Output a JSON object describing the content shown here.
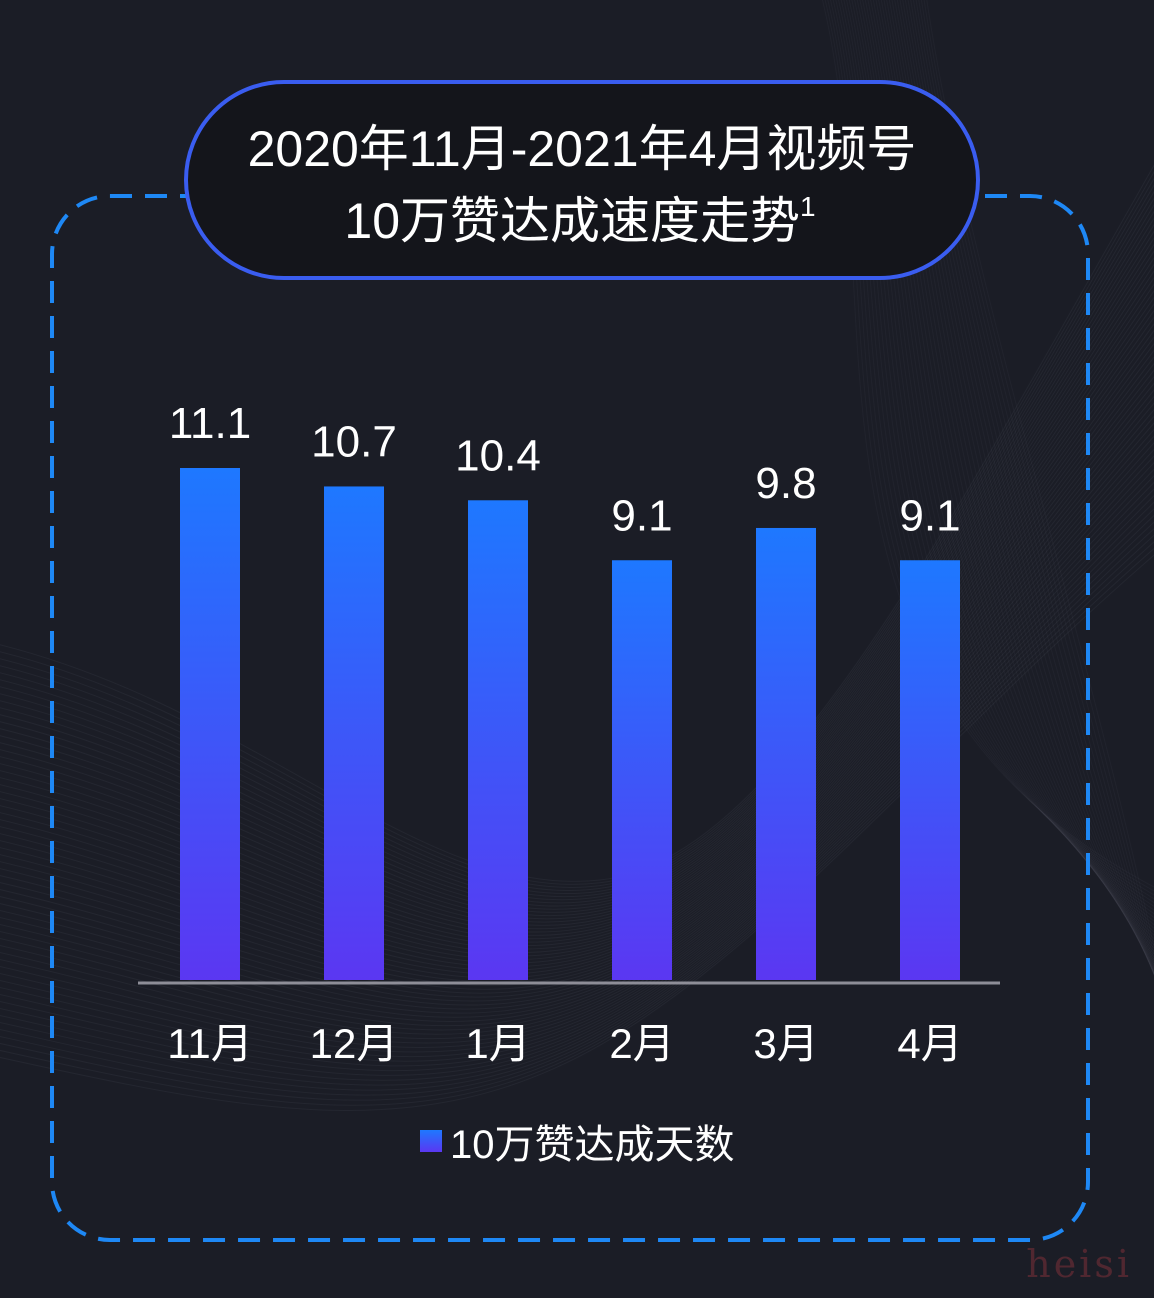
{
  "title": {
    "line1": "2020年11月-2021年4月视频号",
    "line2": "10万赞达成速度走势",
    "superscript": "1"
  },
  "legend": {
    "label": "10万赞达成天数",
    "color": "#4a44f2"
  },
  "watermark": "heisi",
  "colors": {
    "background": "#1b1d26",
    "title_border": "#3a5df0",
    "dashed_frame": "#1e88f5",
    "bar_top": "#1e78ff",
    "bar_bottom": "#5b37f2",
    "axis": "#8e8e98",
    "text": "#ffffff"
  },
  "chart_data": {
    "type": "bar",
    "categories": [
      "11月",
      "12月",
      "1月",
      "2月",
      "3月",
      "4月"
    ],
    "series": [
      {
        "name": "10万赞达成天数",
        "values": [
          11.1,
          10.7,
          10.4,
          9.1,
          9.8,
          9.1
        ]
      }
    ],
    "ylim": [
      0,
      11.1
    ],
    "data_labels": true,
    "grid": false,
    "legend_position": "bottom-center"
  }
}
